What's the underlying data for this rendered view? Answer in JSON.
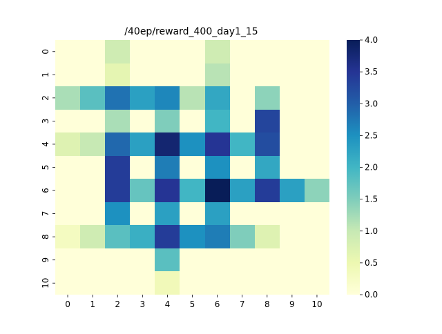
{
  "chart_data": {
    "type": "heatmap",
    "title": "/40ep/reward_400_day1_15",
    "x_labels": [
      "0",
      "1",
      "2",
      "3",
      "4",
      "5",
      "6",
      "7",
      "8",
      "9",
      "10"
    ],
    "y_labels": [
      "0",
      "1",
      "2",
      "3",
      "4",
      "5",
      "6",
      "7",
      "8",
      "9",
      "10"
    ],
    "values": [
      [
        0,
        0,
        0.9,
        0,
        0,
        0,
        0.9,
        0,
        0,
        0,
        0
      ],
      [
        0,
        0,
        0.6,
        0,
        0,
        0,
        1.1,
        0,
        0,
        0,
        0
      ],
      [
        1.2,
        1.8,
        2.8,
        2.3,
        2.6,
        1.1,
        2.2,
        0,
        1.4,
        0,
        0
      ],
      [
        0,
        0,
        1.2,
        0,
        1.5,
        0,
        2.0,
        0,
        3.3,
        0,
        0
      ],
      [
        0.7,
        1.0,
        2.9,
        2.3,
        3.8,
        2.5,
        3.5,
        2.0,
        3.2,
        0,
        0
      ],
      [
        0,
        0,
        3.4,
        0,
        2.7,
        0,
        2.5,
        0,
        2.2,
        0,
        0
      ],
      [
        0,
        0,
        3.4,
        1.7,
        3.5,
        2.0,
        4.0,
        2.3,
        3.4,
        2.3,
        1.4
      ],
      [
        0,
        0,
        2.5,
        0,
        2.3,
        0,
        2.3,
        0,
        0,
        0,
        0
      ],
      [
        0.3,
        0.9,
        1.8,
        2.1,
        3.4,
        2.5,
        2.7,
        1.5,
        0.7,
        0,
        0
      ],
      [
        0,
        0,
        0,
        0,
        1.8,
        0,
        0,
        0,
        0,
        0,
        0
      ],
      [
        0,
        0,
        0,
        0,
        0.4,
        0,
        0,
        0,
        0,
        0,
        0
      ]
    ],
    "colorbar": {
      "min": 0,
      "max": 4.0,
      "ticks": [
        "0.0",
        "0.5",
        "1.0",
        "1.5",
        "2.0",
        "2.5",
        "3.0",
        "3.5",
        "4.0"
      ],
      "colormap": "YlGnBu",
      "stops": [
        "#ffffd9",
        "#edf8b1",
        "#c7e9b4",
        "#7fcdbb",
        "#41b6c4",
        "#1d91c0",
        "#225ea8",
        "#253494",
        "#081d58"
      ]
    },
    "grid": false,
    "legend": "colorbar-right"
  }
}
